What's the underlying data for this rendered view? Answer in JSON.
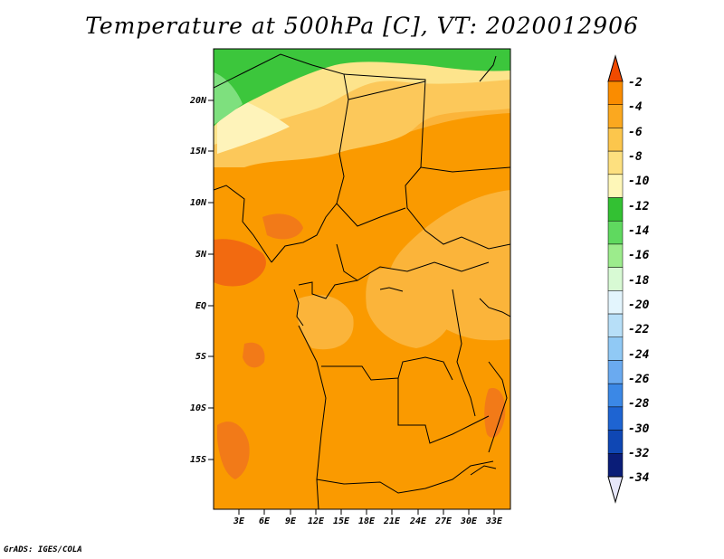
{
  "title": "Temperature at 500hPa [C], VT: 2020012906",
  "credit": "GrADS: IGES/COLA",
  "map": {
    "lat_ticks": [
      "20N",
      "15N",
      "10N",
      "5N",
      "EQ",
      "5S",
      "10S",
      "15S"
    ],
    "lon_ticks": [
      "3E",
      "6E",
      "9E",
      "12E",
      "15E",
      "18E",
      "21E",
      "24E",
      "27E",
      "30E",
      "33E"
    ]
  },
  "colorbar": {
    "labels": [
      "-2",
      "-4",
      "-6",
      "-8",
      "-10",
      "-12",
      "-14",
      "-16",
      "-18",
      "-20",
      "-22",
      "-24",
      "-26",
      "-28",
      "-30",
      "-32",
      "-34"
    ],
    "colors": [
      "#f5591e",
      "#fa8c00",
      "#fba81f",
      "#fcc64c",
      "#fde07f",
      "#fef7b8",
      "#33c133",
      "#5fd95f",
      "#9cec8c",
      "#d8fad4",
      "#e3f5fd",
      "#b7dff8",
      "#90c9f5",
      "#6aaaf0",
      "#3b88e6",
      "#1e64d2",
      "#0f47b4",
      "#0a1d78",
      "#e6e6fa"
    ]
  }
}
